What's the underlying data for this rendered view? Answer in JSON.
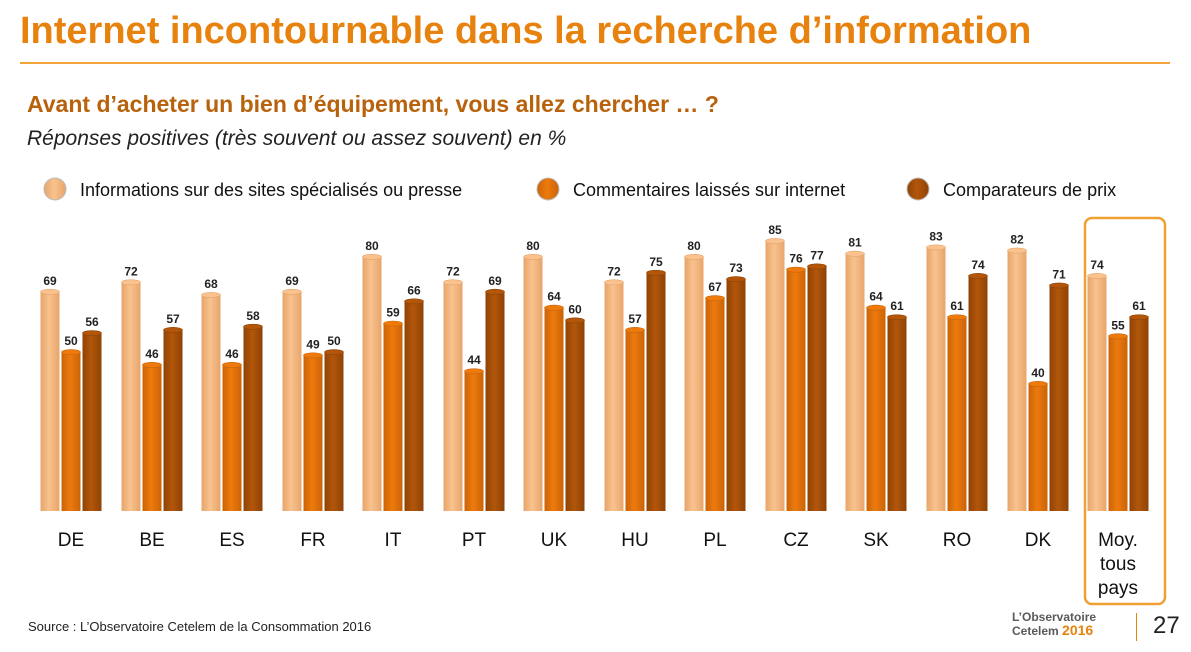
{
  "slide": {
    "title": "Internet incontournable dans la recherche d’information",
    "subtitle": "Avant d’acheter un bien d’équipement, vous allez chercher … ?",
    "caption": "Réponses positives  (très souvent ou assez souvent) en %",
    "source": "Source : L’Observatoire Cetelem de la Consommation 2016",
    "page_number": "27",
    "logo": {
      "line1": "L’Observatoire",
      "line2": "Cetelem",
      "year": "2016"
    }
  },
  "colors": {
    "title": "#E8820E",
    "subtitle": "#B8620C",
    "series_1": "#F9C28E",
    "series_2": "#EE7A0C",
    "series_3": "#B3560A",
    "highlight_box": "#F0A030"
  },
  "chart_data": {
    "type": "bar",
    "title": "",
    "xlabel": "",
    "ylabel": "",
    "ylim": [
      0,
      100
    ],
    "grid": false,
    "legend_position": "top",
    "categories": [
      "DE",
      "BE",
      "ES",
      "FR",
      "IT",
      "PT",
      "UK",
      "HU",
      "PL",
      "CZ",
      "SK",
      "RO",
      "DK",
      "Moy. tous pays"
    ],
    "highlighted_category": "Moy. tous pays",
    "series": [
      {
        "name": "Informations sur des sites spécialisés ou presse",
        "values": [
          69,
          72,
          68,
          69,
          80,
          72,
          80,
          72,
          80,
          85,
          81,
          83,
          82,
          74
        ]
      },
      {
        "name": "Commentaires laissés sur internet",
        "values": [
          50,
          46,
          46,
          49,
          59,
          44,
          64,
          57,
          67,
          76,
          64,
          61,
          40,
          55
        ]
      },
      {
        "name": "Comparateurs de prix",
        "values": [
          56,
          57,
          58,
          50,
          66,
          69,
          60,
          75,
          73,
          77,
          61,
          74,
          71,
          61
        ]
      }
    ]
  }
}
